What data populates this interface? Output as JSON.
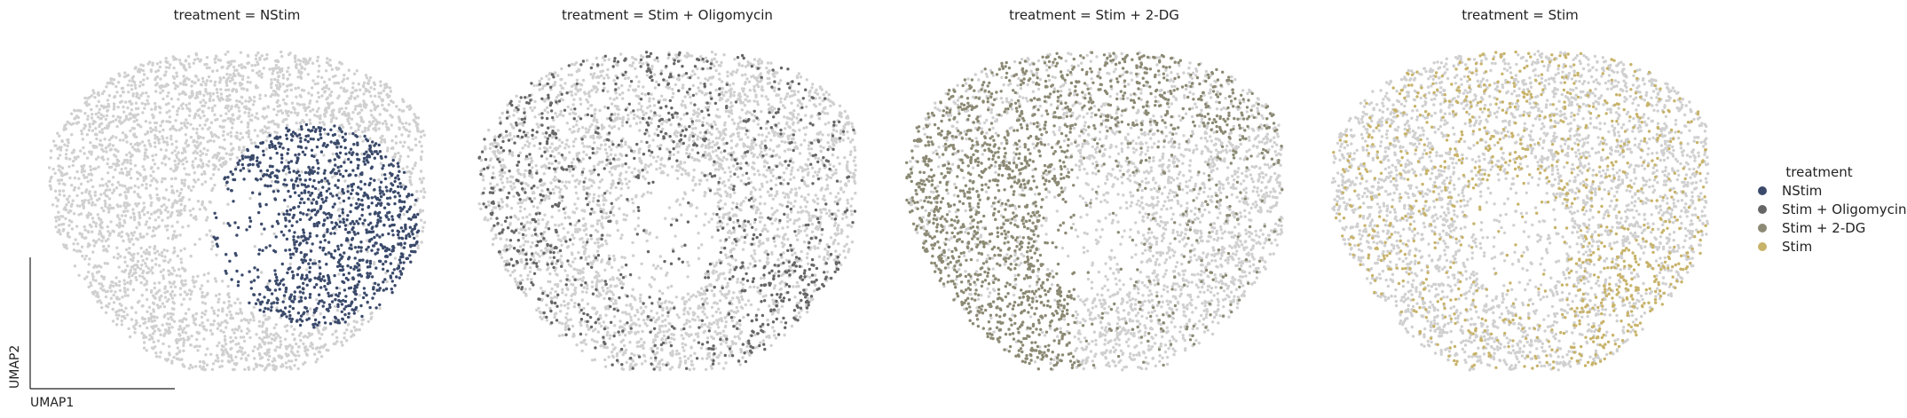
{
  "chart_data": {
    "type": "scatter",
    "facet_by": "treatment",
    "xlabel": "UMAP1",
    "ylabel": "UMAP2",
    "legend": {
      "title": "treatment",
      "placement": "right",
      "entries": [
        {
          "label": "NStim",
          "color": "#3b4a6b"
        },
        {
          "label": "Stim + Oligomycin",
          "color": "#666666"
        },
        {
          "label": "Stim + 2-DG",
          "color": "#8c8a74"
        },
        {
          "label": "Stim",
          "color": "#c8b36a"
        }
      ]
    },
    "background_color": "#d0d0d0",
    "panels": [
      {
        "title": "treatment = NStim",
        "series": "NStim",
        "color": "#3b4a6b",
        "region": "right-center cluster"
      },
      {
        "title": "treatment = Stim + Oligomycin",
        "series": "Stim + Oligomycin",
        "color": "#666666",
        "region": "scattered, denser left and lower-right"
      },
      {
        "title": "treatment = Stim + 2-DG",
        "series": "Stim + 2-DG",
        "color": "#8c8a74",
        "region": "left half and upper band"
      },
      {
        "title": "treatment = Stim",
        "series": "Stim",
        "color": "#c8b36a",
        "region": "scattered, denser upper-center and lower-right"
      }
    ]
  }
}
